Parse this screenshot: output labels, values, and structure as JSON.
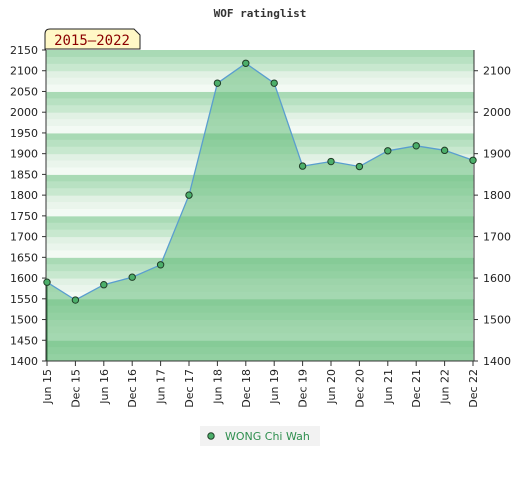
{
  "chart_data": {
    "type": "area",
    "title": "WOF ratinglist",
    "badge": "2015–2022",
    "categories": [
      "Jun 15",
      "Dec 15",
      "Jun 16",
      "Dec 16",
      "Jun 17",
      "Dec 17",
      "Jun 18",
      "Dec 18",
      "Jun 19",
      "Dec 19",
      "Jun 20",
      "Dec 20",
      "Jun 21",
      "Dec 21",
      "Jun 22",
      "Dec 22"
    ],
    "series": [
      {
        "name": "WONG Chi Wah",
        "values": [
          1590,
          1547,
          1584,
          1602,
          1632,
          1800,
          2070,
          2118,
          2070,
          1870,
          1881,
          1869,
          1907,
          1919,
          1908,
          1884
        ]
      }
    ],
    "ylim": [
      1400,
      2150
    ],
    "left_ticks": [
      1400,
      1450,
      1500,
      1550,
      1600,
      1650,
      1700,
      1750,
      1800,
      1850,
      1900,
      1950,
      2000,
      2050,
      2100,
      2150
    ],
    "right_ticks": [
      1400,
      1500,
      1600,
      1700,
      1800,
      1900,
      2000,
      2100
    ],
    "grid": true,
    "legend_position": "bottom-center",
    "colors": {
      "band_light": "#f2f9f3",
      "band_dark": "#b6e0c0",
      "area_fill": "#6fc183",
      "line": "#5a9ecf",
      "marker_fill": "#4caf6a",
      "marker_stroke": "#1f3d26",
      "badge_bg": "#fff8c6"
    }
  }
}
